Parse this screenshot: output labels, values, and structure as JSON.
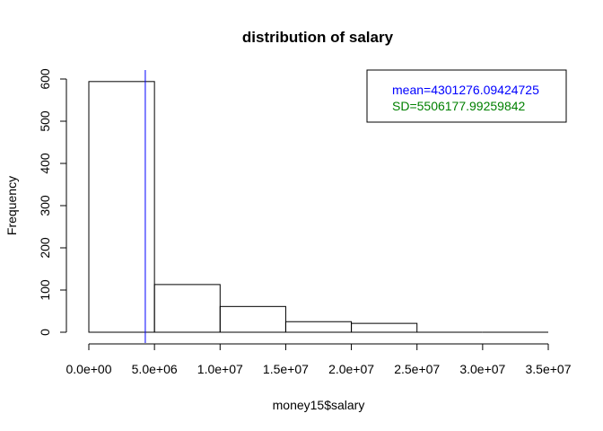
{
  "chart_data": {
    "type": "bar",
    "title": "distribution of salary",
    "xlabel": "money15$salary",
    "ylabel": "Frequency",
    "bin_edges": [
      0,
      5000000,
      10000000,
      15000000,
      20000000,
      25000000,
      30000000,
      35000000
    ],
    "values": [
      594,
      113,
      61,
      25,
      21,
      0,
      0
    ],
    "xlim": [
      0,
      35000000
    ],
    "ylim": [
      0,
      600
    ],
    "x_ticks": [
      0,
      5000000,
      10000000,
      15000000,
      20000000,
      25000000,
      30000000,
      35000000
    ],
    "x_tick_labels": [
      "0.0e+00",
      "5.0e+06",
      "1.0e+07",
      "1.5e+07",
      "2.0e+07",
      "2.5e+07",
      "3.0e+07",
      "3.5e+07"
    ],
    "y_ticks": [
      0,
      100,
      200,
      300,
      400,
      500,
      600
    ],
    "y_tick_labels": [
      "0",
      "100",
      "200",
      "300",
      "400",
      "500",
      "600"
    ],
    "mean_line": {
      "value": 4301276.09424725,
      "color": "#0000ff"
    },
    "legend": {
      "position": "top-right",
      "entries": [
        {
          "text": "mean=4301276.09424725",
          "color": "#0000ff"
        },
        {
          "text": "SD=5506177.99259842",
          "color": "#008000"
        }
      ]
    },
    "grid": false
  }
}
